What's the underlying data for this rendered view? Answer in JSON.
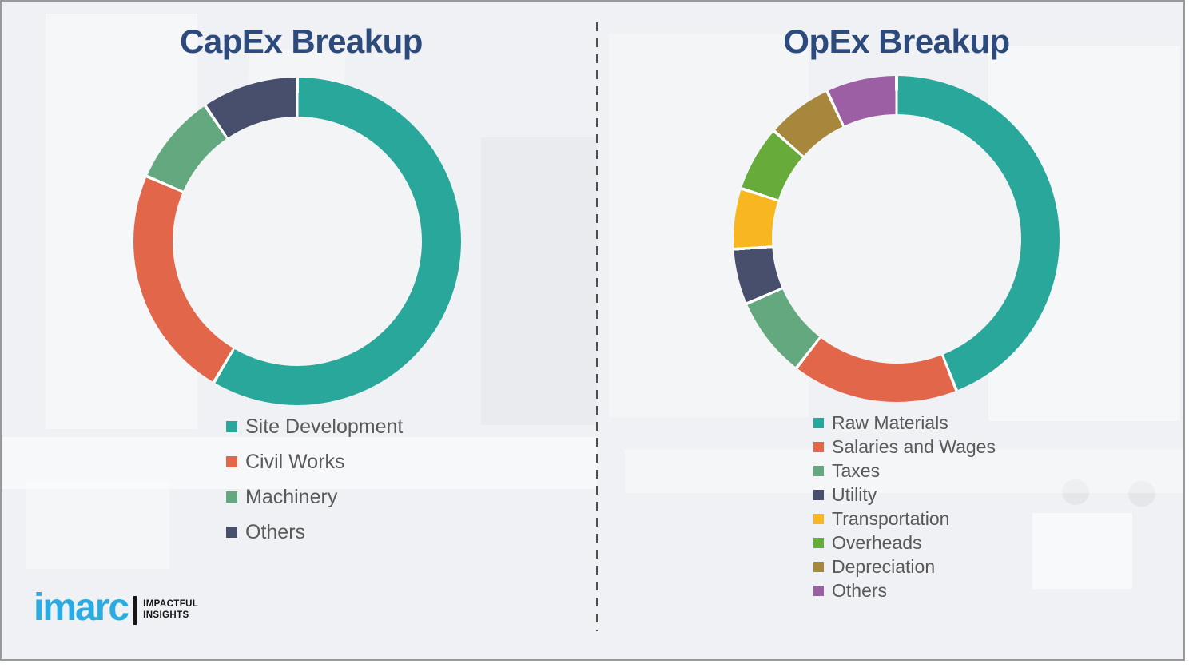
{
  "page": {
    "background_color": "#eff1f4",
    "frame_border_color": "#97999c",
    "title_color": "#2c4a7c",
    "legend_text_color": "#595959"
  },
  "branding": {
    "logo_text": "imarc",
    "logo_color": "#2aabe2",
    "tagline_line1": "IMPACTFUL",
    "tagline_line2": "INSIGHTS"
  },
  "chart_data": [
    {
      "type": "pie",
      "title": "CapEx Breakup",
      "categories": [
        "Site Development",
        "Civil Works",
        "Machinery",
        "Others"
      ],
      "values": [
        58.5,
        23,
        9,
        9.5
      ],
      "colors": [
        "#2aa79b",
        "#e2674a",
        "#63a87e",
        "#474f6d"
      ],
      "donut": true,
      "hole_ratio": 0.76,
      "start_angle_deg": 0,
      "direction": "clockwise",
      "segment_gap_color": "#ffffff",
      "legend_position": "below"
    },
    {
      "type": "pie",
      "title": "OpEx Breakup",
      "categories": [
        "Raw Materials",
        "Salaries and Wages",
        "Taxes",
        "Utility",
        "Transportation",
        "Overheads",
        "Depreciation",
        "Others"
      ],
      "values": [
        44,
        16.5,
        8,
        5.5,
        6,
        6.5,
        6.5,
        7
      ],
      "colors": [
        "#2aa79b",
        "#e2674a",
        "#63a87e",
        "#474f6d",
        "#f8b620",
        "#67ab3a",
        "#a6873b",
        "#9d5fa4"
      ],
      "donut": true,
      "hole_ratio": 0.76,
      "start_angle_deg": 0,
      "direction": "clockwise",
      "segment_gap_color": "#ffffff",
      "legend_position": "below"
    }
  ]
}
